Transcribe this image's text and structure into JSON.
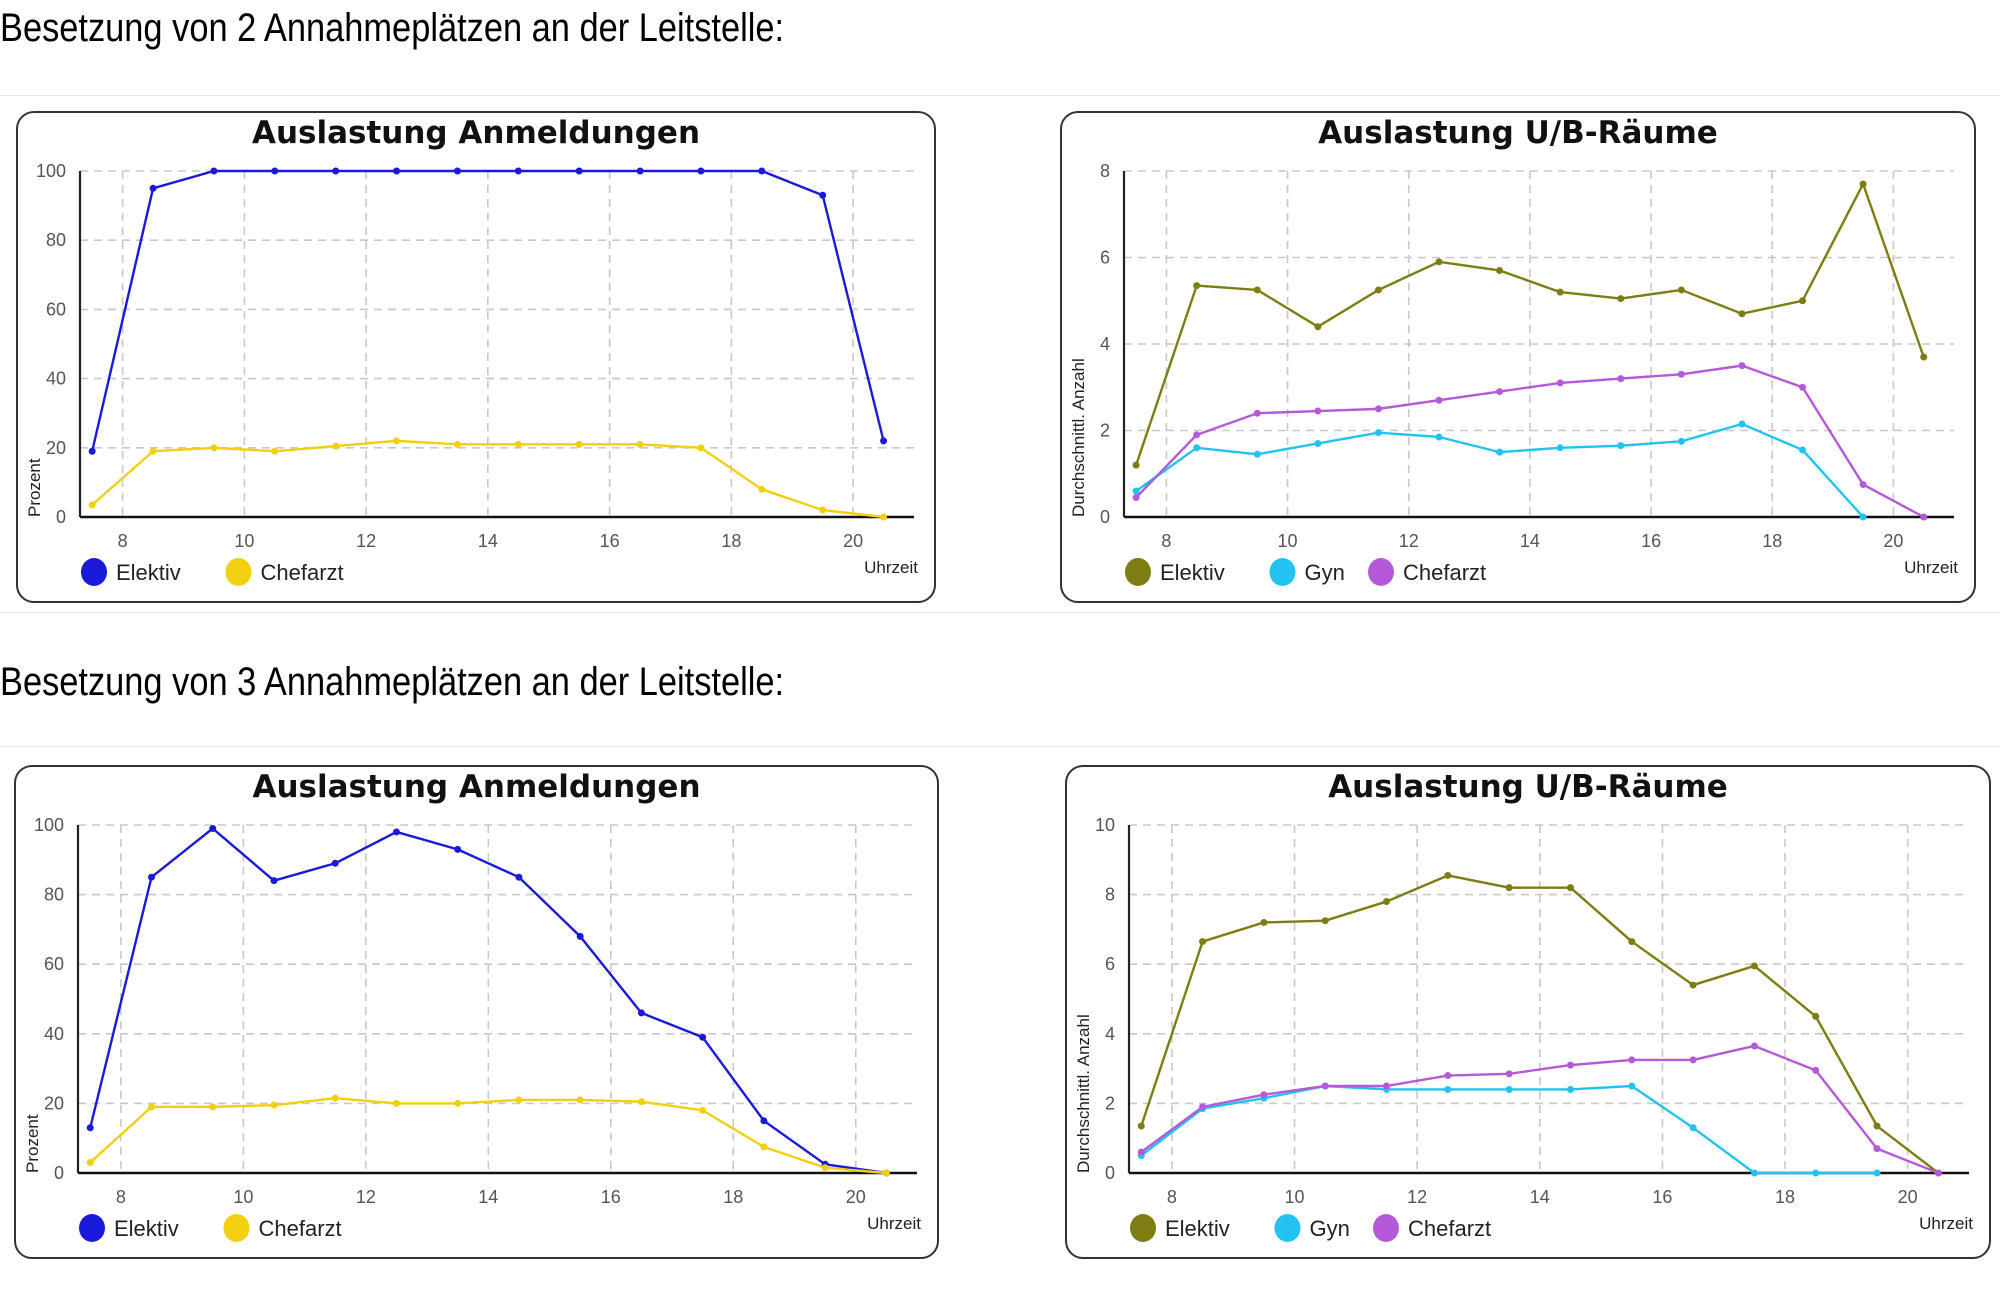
{
  "sections": [
    {
      "heading": "Besetzung von 2 Annahmeplätzen an der Leitstelle:"
    },
    {
      "heading": "Besetzung von 3 Annahmeplätzen an der Leitstelle:"
    }
  ],
  "chart_data": [
    {
      "id": "s2-anmeldungen",
      "type": "line",
      "title": "Auslastung Anmeldungen",
      "xlabel": "Uhrzeit",
      "ylabel": "Prozent",
      "xlim": [
        7.3,
        21
      ],
      "ylim": [
        0,
        100
      ],
      "xticks": [
        8,
        10,
        12,
        14,
        16,
        18,
        20
      ],
      "yticks": [
        0,
        20,
        40,
        60,
        80,
        100
      ],
      "grid": true,
      "legend": "bottom-left",
      "x": [
        7.5,
        8.5,
        9.5,
        10.5,
        11.5,
        12.5,
        13.5,
        14.5,
        15.5,
        16.5,
        17.5,
        18.5,
        19.5,
        20.5
      ],
      "series": [
        {
          "name": "Elektiv",
          "color": "#1a1adb",
          "values": [
            19,
            95,
            100,
            100,
            100,
            100,
            100,
            100,
            100,
            100,
            100,
            100,
            93,
            22
          ]
        },
        {
          "name": "Chefarzt",
          "color": "#f2cf10",
          "values": [
            3.5,
            19,
            20,
            19,
            20.5,
            22,
            21,
            21,
            21,
            21,
            20,
            8,
            2,
            0
          ]
        }
      ]
    },
    {
      "id": "s2-raeume",
      "type": "line",
      "title": "Auslastung U/B-Räume",
      "xlabel": "Uhrzeit",
      "ylabel": "Durchschnittl. Anzahl",
      "xlim": [
        7.3,
        21
      ],
      "ylim": [
        0,
        8
      ],
      "xticks": [
        8,
        10,
        12,
        14,
        16,
        18,
        20
      ],
      "yticks": [
        0,
        2,
        4,
        6,
        8
      ],
      "grid": true,
      "legend": "bottom-left",
      "x": [
        7.5,
        8.5,
        9.5,
        10.5,
        11.5,
        12.5,
        13.5,
        14.5,
        15.5,
        16.5,
        17.5,
        18.5,
        19.5,
        20.5
      ],
      "series": [
        {
          "name": "Elektiv",
          "color": "#7d7d12",
          "values": [
            1.2,
            5.35,
            5.25,
            4.4,
            5.25,
            5.9,
            5.7,
            5.2,
            5.05,
            5.25,
            4.7,
            5.0,
            7.7,
            3.7
          ]
        },
        {
          "name": "Gyn",
          "color": "#22c3f0",
          "values": [
            0.6,
            1.6,
            1.45,
            1.7,
            1.95,
            1.85,
            1.5,
            1.6,
            1.65,
            1.75,
            2.15,
            1.55,
            0,
            null
          ]
        },
        {
          "name": "Chefarzt",
          "color": "#b659d8",
          "values": [
            0.45,
            1.9,
            2.4,
            2.45,
            2.5,
            2.7,
            2.9,
            3.1,
            3.2,
            3.3,
            3.5,
            3.0,
            0.75,
            0
          ]
        }
      ]
    },
    {
      "id": "s3-anmeldungen",
      "type": "line",
      "title": "Auslastung Anmeldungen",
      "xlabel": "Uhrzeit",
      "ylabel": "Prozent",
      "xlim": [
        7.3,
        21
      ],
      "ylim": [
        0,
        100
      ],
      "xticks": [
        8,
        10,
        12,
        14,
        16,
        18,
        20
      ],
      "yticks": [
        0,
        20,
        40,
        60,
        80,
        100
      ],
      "grid": true,
      "legend": "bottom-left",
      "x": [
        7.5,
        8.5,
        9.5,
        10.5,
        11.5,
        12.5,
        13.5,
        14.5,
        15.5,
        16.5,
        17.5,
        18.5,
        19.5,
        20.5
      ],
      "series": [
        {
          "name": "Elektiv",
          "color": "#1a1adb",
          "values": [
            13,
            85,
            99,
            84,
            89,
            98,
            93,
            85,
            68,
            46,
            39,
            15,
            2.5,
            0
          ]
        },
        {
          "name": "Chefarzt",
          "color": "#f2cf10",
          "values": [
            3,
            19,
            19,
            19.5,
            21.5,
            20,
            20,
            21,
            21,
            20.5,
            18,
            7.5,
            1.5,
            0
          ]
        }
      ]
    },
    {
      "id": "s3-raeume",
      "type": "line",
      "title": "Auslastung U/B-Räume",
      "xlabel": "Uhrzeit",
      "ylabel": "Durchschnittl. Anzahl",
      "xlim": [
        7.3,
        21
      ],
      "ylim": [
        0,
        10
      ],
      "xticks": [
        8,
        10,
        12,
        14,
        16,
        18,
        20
      ],
      "yticks": [
        0,
        2,
        4,
        6,
        8,
        10
      ],
      "grid": true,
      "legend": "bottom-left",
      "x": [
        7.5,
        8.5,
        9.5,
        10.5,
        11.5,
        12.5,
        13.5,
        14.5,
        15.5,
        16.5,
        17.5,
        18.5,
        19.5,
        20.5
      ],
      "series": [
        {
          "name": "Elektiv",
          "color": "#7d7d12",
          "values": [
            1.35,
            6.65,
            7.2,
            7.25,
            7.8,
            8.55,
            8.2,
            8.2,
            6.65,
            5.4,
            5.95,
            4.5,
            1.35,
            0
          ]
        },
        {
          "name": "Gyn",
          "color": "#22c3f0",
          "values": [
            0.5,
            1.85,
            2.15,
            2.5,
            2.4,
            2.4,
            2.4,
            2.4,
            2.5,
            1.3,
            0,
            0,
            0,
            null
          ]
        },
        {
          "name": "Chefarzt",
          "color": "#b659d8",
          "values": [
            0.6,
            1.9,
            2.25,
            2.5,
            2.5,
            2.8,
            2.85,
            3.1,
            3.25,
            3.25,
            3.65,
            2.95,
            0.7,
            0
          ]
        }
      ]
    }
  ]
}
